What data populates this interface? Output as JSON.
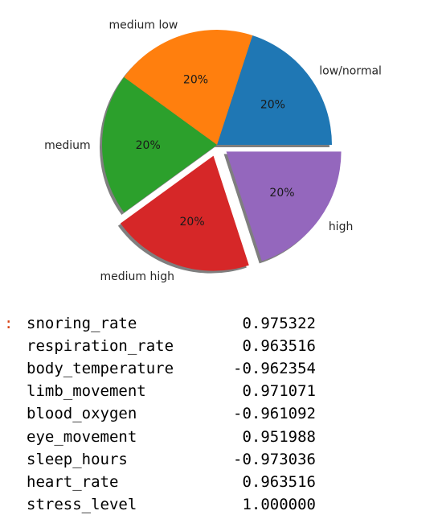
{
  "chart_data": {
    "type": "pie",
    "slices": [
      {
        "label": "low/normal",
        "value": 20,
        "pct_label": "20%",
        "color": "#1f77b4",
        "explode": 0
      },
      {
        "label": "medium low",
        "value": 20,
        "pct_label": "20%",
        "color": "#ff7f0e",
        "explode": 0
      },
      {
        "label": "medium",
        "value": 20,
        "pct_label": "20%",
        "color": "#2ca02c",
        "explode": 0
      },
      {
        "label": "medium high",
        "value": 20,
        "pct_label": "20%",
        "color": "#d62728",
        "explode": 0.1
      },
      {
        "label": "high",
        "value": 20,
        "pct_label": "20%",
        "color": "#9467bd",
        "explode": 0.1
      }
    ],
    "shadow": true,
    "start_angle": 0
  },
  "output": {
    "prompt": ":",
    "rows": [
      {
        "name": "snoring_rate",
        "value": "0.975322"
      },
      {
        "name": "respiration_rate",
        "value": "0.963516"
      },
      {
        "name": "body_temperature",
        "value": "-0.962354"
      },
      {
        "name": "limb_movement",
        "value": "0.971071"
      },
      {
        "name": "blood_oxygen",
        "value": "-0.961092"
      },
      {
        "name": "eye_movement",
        "value": "0.951988"
      },
      {
        "name": "sleep_hours",
        "value": "-0.973036"
      },
      {
        "name": "heart_rate",
        "value": "0.963516"
      },
      {
        "name": "stress_level",
        "value": "1.000000"
      }
    ]
  }
}
